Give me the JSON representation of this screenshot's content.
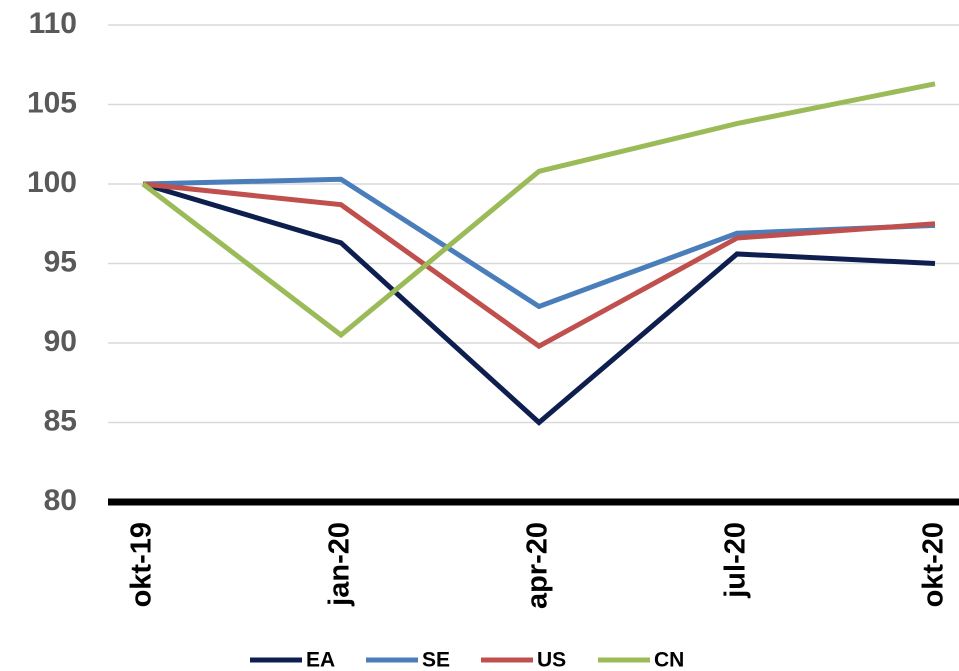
{
  "chart_data": {
    "type": "line",
    "categories": [
      "okt-19",
      "jan-20",
      "apr-20",
      "jul-20",
      "okt-20"
    ],
    "series": [
      {
        "name": "EA",
        "color": "#0e1f4f",
        "values": [
          100,
          96.3,
          85,
          95.6,
          95
        ]
      },
      {
        "name": "SE",
        "color": "#4a7ebb",
        "values": [
          100,
          100.3,
          92.3,
          96.9,
          97.4
        ]
      },
      {
        "name": "US",
        "color": "#c0504d",
        "values": [
          100,
          98.7,
          89.8,
          96.6,
          97.5
        ]
      },
      {
        "name": "CN",
        "color": "#9bbb59",
        "values": [
          100,
          90.5,
          100.8,
          103.8,
          106.3
        ]
      }
    ],
    "ylim": [
      80,
      110
    ],
    "yticks": [
      80,
      85,
      90,
      95,
      100,
      105,
      110
    ],
    "grid": true,
    "legend": "bottom"
  }
}
